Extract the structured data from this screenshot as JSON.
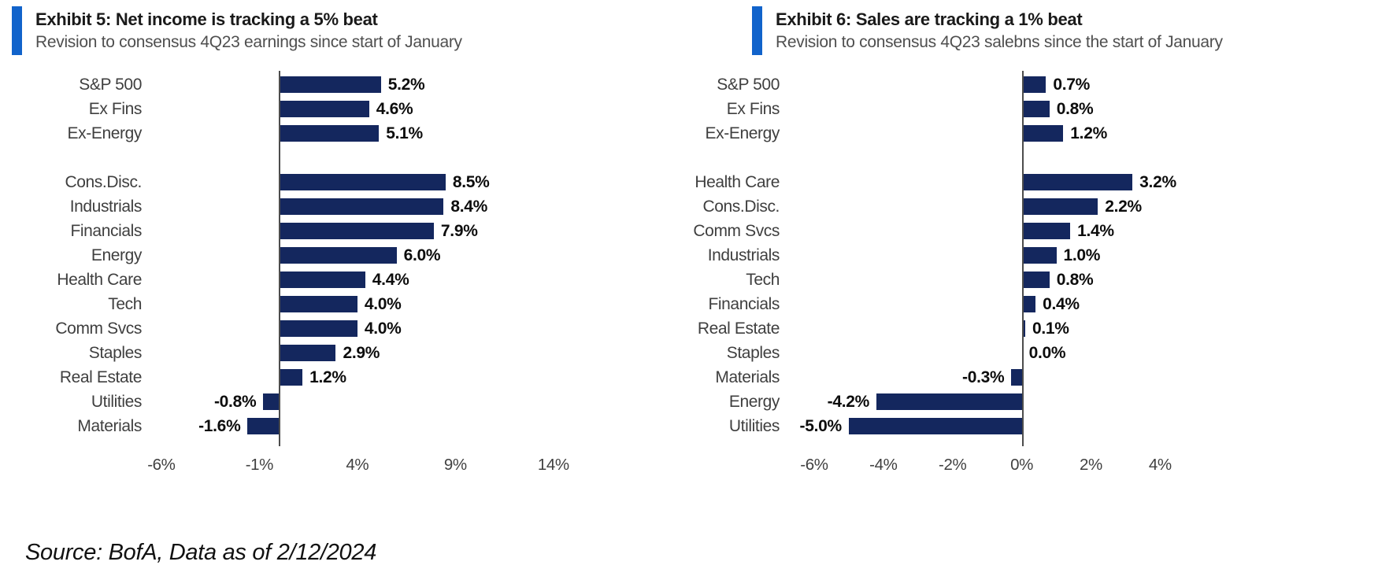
{
  "source_note": "Source: BofA, Data as of 2/12/2024",
  "colors": {
    "accent_blue": "#1163CB",
    "bar_navy": "#14275E",
    "axis_line_gray": "#4d4d4d",
    "title_text": "#1a1a1a",
    "subtitle_text": "#4f4f4f"
  },
  "chart_data": [
    {
      "type": "bar",
      "orientation": "horizontal",
      "title": "Exhibit 5: Net income is tracking a 5% beat",
      "subtitle": "Revision to consensus 4Q23 earnings since start of January",
      "xlabel": "",
      "ylabel": "",
      "categories": [
        "S&P 500",
        "Ex Fins",
        "Ex-Energy",
        null,
        "Cons.Disc.",
        "Industrials",
        "Financials",
        "Energy",
        "Health Care",
        "Tech",
        "Comm Svcs",
        "Staples",
        "Real Estate",
        "Utilities",
        "Materials"
      ],
      "values": [
        5.2,
        4.6,
        5.1,
        null,
        8.5,
        8.4,
        7.9,
        6.0,
        4.4,
        4.0,
        4.0,
        2.9,
        1.2,
        -0.8,
        -1.6
      ],
      "value_labels": [
        "5.2%",
        "4.6%",
        "5.1%",
        null,
        "8.5%",
        "8.4%",
        "7.9%",
        "6.0%",
        "4.4%",
        "4.0%",
        "4.0%",
        "2.9%",
        "1.2%",
        "-0.8%",
        "-1.6%"
      ],
      "xlim": [
        -7,
        16.5
      ],
      "xticks": [
        -6,
        -1,
        4,
        9,
        14
      ],
      "xtick_labels": [
        "-6%",
        "-1%",
        "4%",
        "9%",
        "14%"
      ],
      "grid": false,
      "legend": null,
      "bar_color": "#14275E"
    },
    {
      "type": "bar",
      "orientation": "horizontal",
      "title": "Exhibit 6: Sales are tracking a 1% beat",
      "subtitle": "Revision to consensus 4Q23 salebns since the start of January",
      "xlabel": "",
      "ylabel": "",
      "categories": [
        "S&P 500",
        "Ex Fins",
        "Ex-Energy",
        null,
        "Health Care",
        "Cons.Disc.",
        "Comm Svcs",
        "Industrials",
        "Tech",
        "Financials",
        "Real Estate",
        "Staples",
        "Materials",
        "Energy",
        "Utilities"
      ],
      "values": [
        0.7,
        0.8,
        1.2,
        null,
        3.2,
        2.2,
        1.4,
        1.0,
        0.8,
        0.4,
        0.1,
        0.0,
        -0.3,
        -4.2,
        -5.0
      ],
      "value_labels": [
        "0.7%",
        "0.8%",
        "1.2%",
        null,
        "3.2%",
        "2.2%",
        "1.4%",
        "1.0%",
        "0.8%",
        "0.4%",
        "0.1%",
        "0.0%",
        "-0.3%",
        "-4.2%",
        "-5.0%"
      ],
      "xlim": [
        -7,
        6.2
      ],
      "xticks": [
        -6,
        -4,
        -2,
        0,
        2,
        4
      ],
      "xtick_labels": [
        "-6%",
        "-4%",
        "-2%",
        "0%",
        "2%",
        "4%"
      ],
      "grid": false,
      "legend": null,
      "bar_color": "#14275E"
    }
  ]
}
